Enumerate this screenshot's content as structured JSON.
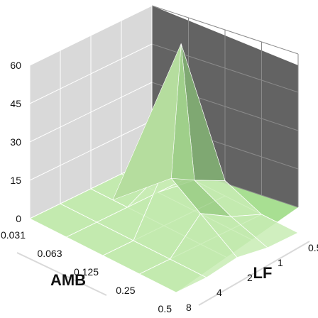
{
  "chart_data": {
    "type": "surface3d",
    "title": "",
    "xlabel": "LF",
    "ylabel": "AMB",
    "zlabel": "",
    "x_categories": [
      "0.5",
      "1",
      "2",
      "4",
      "8"
    ],
    "y_categories": [
      "0.031",
      "0.063",
      "0.125",
      "0.25",
      "0.5"
    ],
    "z_ticks": [
      "0",
      "15",
      "30",
      "45",
      "60"
    ],
    "zlim": [
      0,
      60
    ],
    "grid": true,
    "values": [
      [
        0,
        0,
        0,
        0,
        0
      ],
      [
        0,
        0,
        0,
        0,
        0
      ],
      [
        6,
        12,
        22,
        0,
        0
      ],
      [
        0,
        5,
        12,
        0,
        0
      ],
      [
        0,
        0,
        2,
        0,
        0
      ]
    ],
    "peak": {
      "x_between": [
        "0.5",
        "1"
      ],
      "y_between": [
        "0.031",
        "0.063"
      ],
      "value": 58
    },
    "colors": {
      "surface_light": "#c8ecb4",
      "surface_mid": "#9fcf8a",
      "surface_dark": "#3f5a3a",
      "back_wall": "#636363",
      "side_wall": "#d9d9d9",
      "floor": "#a8df92",
      "grid_line": "#ffffff"
    }
  }
}
